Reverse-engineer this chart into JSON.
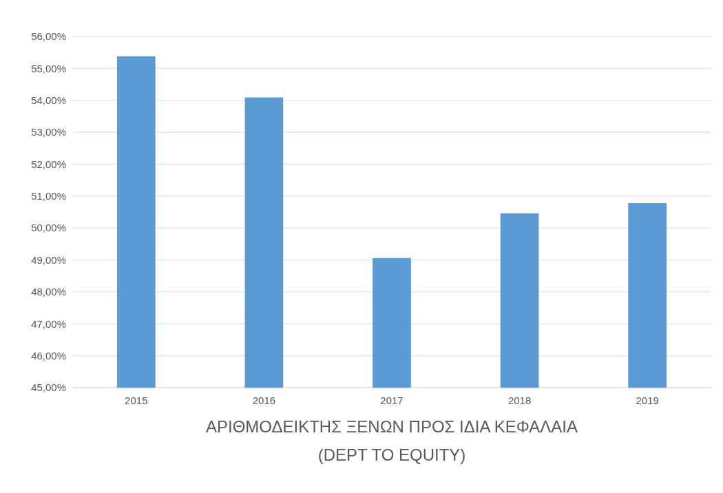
{
  "chart_data": {
    "type": "bar",
    "title": "ΑΡΙΘΜΟΔΕΙΚΤΗΣ ΞΕΝΩΝ ΠΡΟΣ ΙΔΙΑ ΚΕΦΑΛΑΙΑ",
    "subtitle": "(DEPT TO EQUITY)",
    "categories": [
      "2015",
      "2016",
      "2017",
      "2018",
      "2019"
    ],
    "values": [
      55.38,
      54.09,
      49.06,
      50.46,
      50.78
    ],
    "color": "#5b9bd5",
    "ylim": [
      45,
      56
    ],
    "yticks": [
      {
        "value": 45,
        "label": "45,00%"
      },
      {
        "value": 46,
        "label": "46,00%"
      },
      {
        "value": 47,
        "label": "47,00%"
      },
      {
        "value": 48,
        "label": "48,00%"
      },
      {
        "value": 49,
        "label": "49,00%"
      },
      {
        "value": 50,
        "label": "50,00%"
      },
      {
        "value": 51,
        "label": "51,00%"
      },
      {
        "value": 52,
        "label": "52,00%"
      },
      {
        "value": 53,
        "label": "53,00%"
      },
      {
        "value": 54,
        "label": "54,00%"
      },
      {
        "value": 55,
        "label": "55,00%"
      },
      {
        "value": 56,
        "label": "56,00%"
      }
    ],
    "grid": "y"
  }
}
